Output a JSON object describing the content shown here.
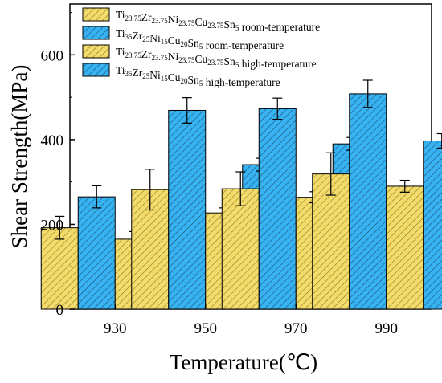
{
  "chart_data": {
    "type": "bar",
    "xlabel": "Temperature(℃)",
    "ylabel": "Shear Strength(MPa)",
    "ylim": [
      0,
      720
    ],
    "yticks": [
      0,
      200,
      400,
      600
    ],
    "categories": [
      "930",
      "950",
      "970",
      "990"
    ],
    "series": [
      {
        "name": "Ti23.75Zr23.75Ni23.75Cu23.75Sn5 room-temperature",
        "name_parts": [
          [
            "Ti",
            ""
          ],
          [
            "23.75",
            "sub"
          ],
          [
            "Zr",
            ""
          ],
          [
            "23.75",
            "sub"
          ],
          [
            "Ni",
            ""
          ],
          [
            "23.75",
            "sub"
          ],
          [
            "Cu",
            ""
          ],
          [
            "23.75",
            "sub"
          ],
          [
            "Sn",
            ""
          ],
          [
            "5",
            "sub"
          ],
          [
            " room-temperature",
            ""
          ]
        ],
        "values": [
          192,
          282,
          284,
          319
        ],
        "errors": [
          27,
          48,
          40,
          50
        ],
        "color": "#f3dc6b",
        "hatch": "#8a7a20"
      },
      {
        "name": "Ti35Zr25Ni15Cu20Sn5 room-temperature",
        "name_parts": [
          [
            "Ti",
            ""
          ],
          [
            "35",
            "sub"
          ],
          [
            "Zr",
            ""
          ],
          [
            "25",
            "sub"
          ],
          [
            "Ni",
            ""
          ],
          [
            "15",
            "sub"
          ],
          [
            "Cu",
            ""
          ],
          [
            "20",
            "sub"
          ],
          [
            "Sn",
            ""
          ],
          [
            "5",
            "sub"
          ],
          [
            " room-temperature",
            ""
          ]
        ],
        "values": [
          265,
          469,
          473,
          508
        ],
        "errors": [
          26,
          30,
          25,
          32
        ],
        "color": "#38b3f2",
        "hatch": "#1b4f75"
      },
      {
        "name": "Ti23.75Zr23.75Ni23.75Cu23.75Sn5 high-temperature",
        "name_parts": [
          [
            "Ti",
            ""
          ],
          [
            "23.75",
            "sub"
          ],
          [
            "Zr",
            ""
          ],
          [
            "23.75",
            "sub"
          ],
          [
            "Ni",
            ""
          ],
          [
            "23.75",
            "sub"
          ],
          [
            "Cu",
            ""
          ],
          [
            "23.75",
            "sub"
          ],
          [
            "Sn",
            ""
          ],
          [
            "5",
            "sub"
          ],
          [
            " high-temperature",
            ""
          ]
        ],
        "values": [
          165,
          227,
          264,
          290
        ],
        "errors": [
          18,
          12,
          13,
          14
        ],
        "color": "#f3dc6b",
        "hatch": "#8a7a20"
      },
      {
        "name": "Ti35Zr25Ni15Cu20Sn5 high-temperature",
        "name_parts": [
          [
            "Ti",
            ""
          ],
          [
            "35",
            "sub"
          ],
          [
            "Zr",
            ""
          ],
          [
            "25",
            "sub"
          ],
          [
            "Ni",
            ""
          ],
          [
            "15",
            "sub"
          ],
          [
            "Cu",
            ""
          ],
          [
            "20",
            "sub"
          ],
          [
            "Sn",
            ""
          ],
          [
            "5",
            "sub"
          ],
          [
            " high-temperature",
            ""
          ]
        ],
        "values": [
          176,
          341,
          390,
          397
        ],
        "errors": [
          11,
          15,
          15,
          17
        ],
        "color": "#38b3f2",
        "hatch": "#1b4f75"
      }
    ],
    "legend_position": "top-left",
    "grid": false
  }
}
